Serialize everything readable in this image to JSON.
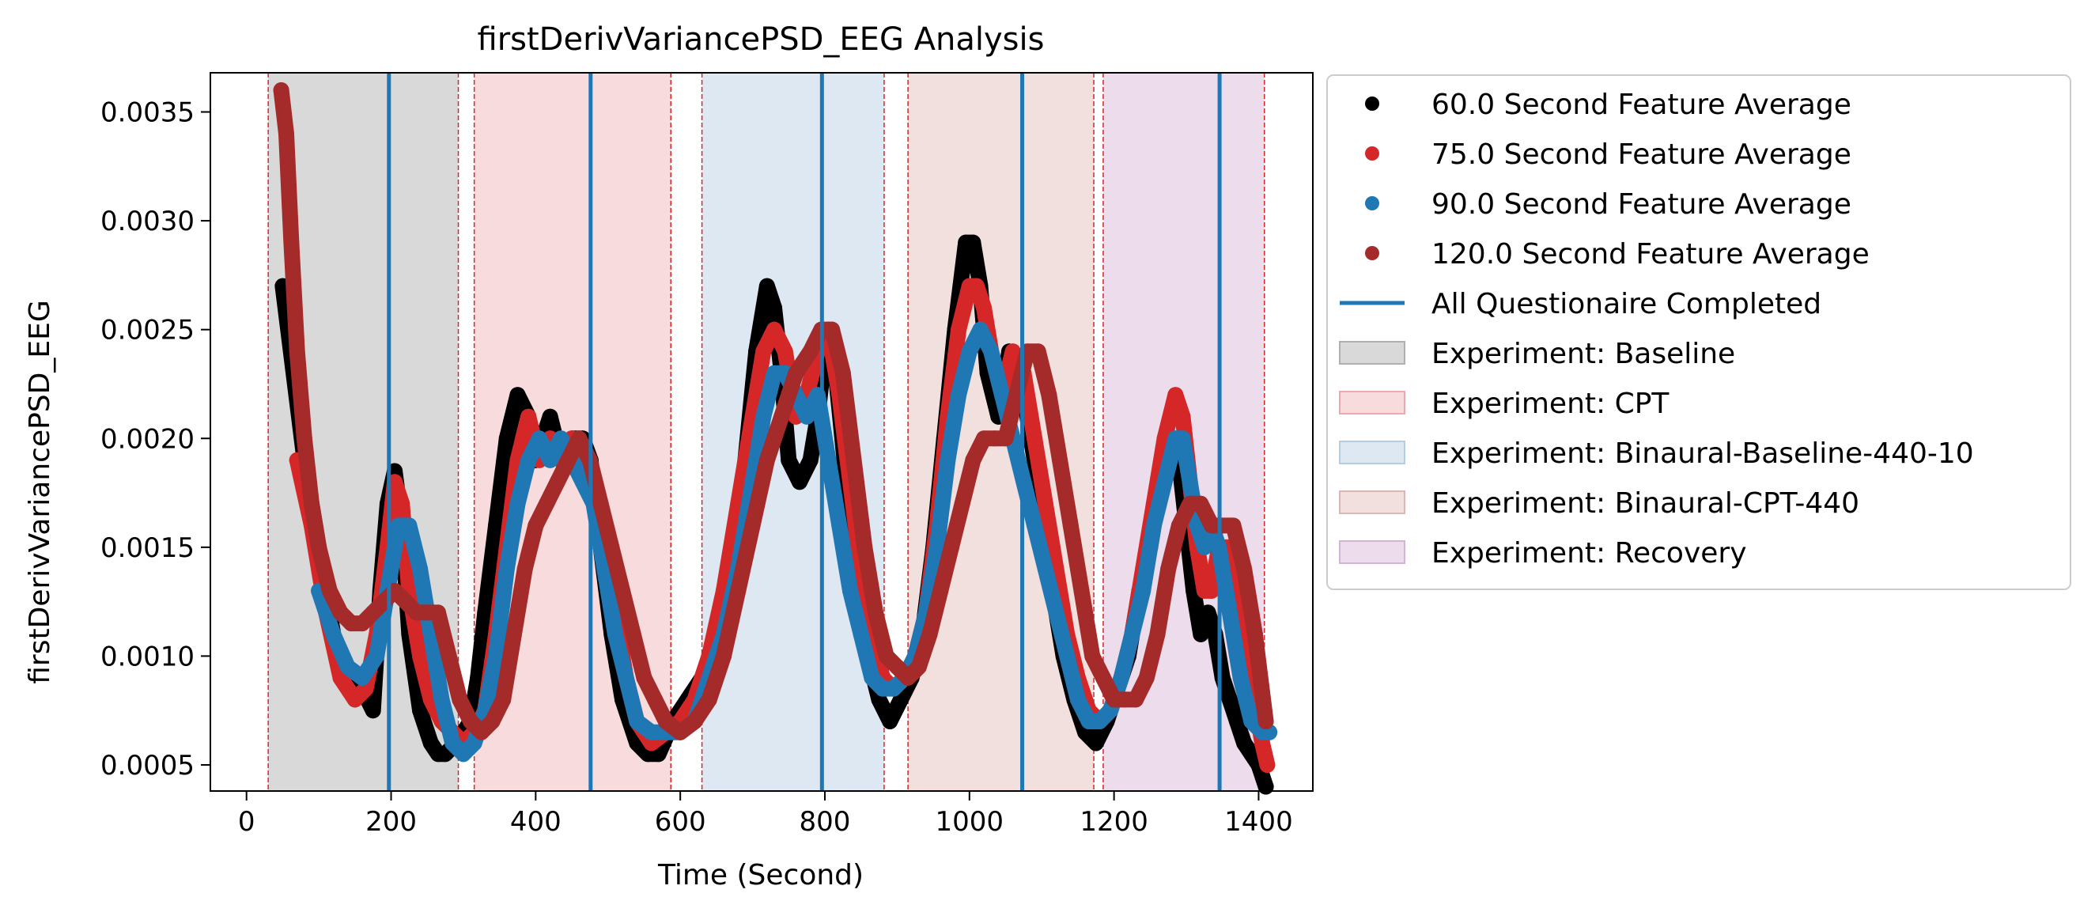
{
  "chart_data": {
    "type": "scatter",
    "title": "firstDerivVariancePSD_EEG Analysis",
    "xlabel": "Time (Second)",
    "ylabel": "firstDerivVariancePSD_EEG",
    "xlim": [
      -50,
      1475
    ],
    "ylim": [
      0.00038,
      0.00368
    ],
    "xticks": [
      0,
      200,
      400,
      600,
      800,
      1000,
      1200,
      1400
    ],
    "yticks": [
      0.0005,
      0.001,
      0.0015,
      0.002,
      0.0025,
      0.003,
      0.0035
    ],
    "xtick_labels": [
      "0",
      "200",
      "400",
      "600",
      "800",
      "1000",
      "1200",
      "1400"
    ],
    "ytick_labels": [
      "0.0005",
      "0.0010",
      "0.0015",
      "0.0020",
      "0.0025",
      "0.0030",
      "0.0035"
    ],
    "grid": false,
    "legend_position": "outside-right",
    "phases": [
      {
        "name": "Experiment: Baseline",
        "start": 30,
        "end": 293,
        "color": "#7f7f7f"
      },
      {
        "name": "Experiment: CPT",
        "start": 315,
        "end": 587,
        "color": "#e377c2"
      },
      {
        "name": "Experiment: Binaural-Baseline-440-10",
        "start": 630,
        "end": 882,
        "color": "#a6c8e6"
      },
      {
        "name": "Experiment: Binaural-CPT-440",
        "start": 915,
        "end": 1172,
        "color": "#c89a9a"
      },
      {
        "name": "Experiment: Recovery",
        "start": 1185,
        "end": 1408,
        "color": "#b98fcb"
      }
    ],
    "phase_fill_colors": [
      "#d9d9d9",
      "#f8dcdd",
      "#dde8f3",
      "#f2e0de",
      "#ecdcec"
    ],
    "phase_border_color": "#d62728",
    "questionnaire_label": "All Questionaire Completed",
    "questionnaire_color": "#1f77b4",
    "questionnaire_times": [
      197,
      476,
      796,
      1073,
      1346
    ],
    "series": [
      {
        "name": "60.0 Second Feature Average",
        "color": "#000000",
        "x": [
          50,
          80,
          100,
          120,
          140,
          160,
          175,
          185,
          195,
          205,
          215,
          225,
          240,
          255,
          265,
          275,
          290,
          300,
          310,
          320,
          330,
          345,
          360,
          375,
          390,
          400,
          410,
          420,
          435,
          450,
          465,
          476,
          490,
          505,
          520,
          540,
          555,
          570,
          590,
          610,
          630,
          650,
          670,
          690,
          705,
          720,
          730,
          740,
          750,
          765,
          780,
          790,
          800,
          815,
          830,
          845,
          860,
          875,
          890,
          905,
          920,
          935,
          950,
          965,
          980,
          995,
          1005,
          1015,
          1025,
          1040,
          1055,
          1070,
          1085,
          1100,
          1115,
          1130,
          1145,
          1160,
          1175,
          1190,
          1205,
          1220,
          1235,
          1250,
          1265,
          1280,
          1290,
          1300,
          1310,
          1320,
          1330,
          1340,
          1350,
          1360,
          1370,
          1380,
          1390,
          1400,
          1410
        ],
        "y": [
          0.0027,
          0.0019,
          0.0015,
          0.0011,
          0.0009,
          0.00085,
          0.00075,
          0.0013,
          0.0017,
          0.00185,
          0.0016,
          0.0011,
          0.00075,
          0.0006,
          0.00055,
          0.00055,
          0.0006,
          0.00065,
          0.0007,
          0.0009,
          0.0012,
          0.0016,
          0.002,
          0.0022,
          0.0021,
          0.0019,
          0.002,
          0.0021,
          0.0019,
          0.002,
          0.002,
          0.0019,
          0.0015,
          0.0011,
          0.0008,
          0.0006,
          0.00055,
          0.00055,
          0.0007,
          0.0008,
          0.0009,
          0.0011,
          0.0014,
          0.0019,
          0.0024,
          0.0027,
          0.0026,
          0.0023,
          0.0019,
          0.0018,
          0.0019,
          0.0021,
          0.0024,
          0.0023,
          0.0018,
          0.0013,
          0.001,
          0.0008,
          0.0007,
          0.0008,
          0.0009,
          0.0011,
          0.0015,
          0.002,
          0.0025,
          0.0029,
          0.0029,
          0.0027,
          0.0023,
          0.0021,
          0.0024,
          0.0023,
          0.002,
          0.0017,
          0.0013,
          0.001,
          0.0008,
          0.00065,
          0.0006,
          0.0007,
          0.00085,
          0.001,
          0.0013,
          0.0015,
          0.0018,
          0.002,
          0.0019,
          0.0016,
          0.0013,
          0.0011,
          0.0012,
          0.0011,
          0.0009,
          0.0008,
          0.0007,
          0.0006,
          0.00055,
          0.0005,
          0.0004
        ]
      },
      {
        "name": "75.0 Second Feature Average",
        "color": "#d62728",
        "x": [
          70,
          90,
          110,
          130,
          150,
          165,
          180,
          195,
          205,
          215,
          225,
          240,
          255,
          270,
          285,
          300,
          315,
          330,
          345,
          360,
          375,
          390,
          405,
          420,
          435,
          450,
          465,
          480,
          495,
          510,
          525,
          540,
          560,
          580,
          600,
          620,
          640,
          660,
          680,
          700,
          715,
          730,
          745,
          760,
          775,
          790,
          805,
          820,
          835,
          850,
          865,
          880,
          895,
          910,
          925,
          940,
          955,
          970,
          985,
          1000,
          1010,
          1020,
          1030,
          1045,
          1060,
          1075,
          1090,
          1105,
          1120,
          1135,
          1150,
          1165,
          1180,
          1195,
          1210,
          1225,
          1240,
          1255,
          1270,
          1285,
          1295,
          1305,
          1315,
          1325,
          1335,
          1345,
          1360,
          1375,
          1390,
          1405,
          1412
        ],
        "y": [
          0.0019,
          0.0016,
          0.0012,
          0.0009,
          0.0008,
          0.00085,
          0.0011,
          0.0015,
          0.0018,
          0.0017,
          0.0013,
          0.001,
          0.0008,
          0.0007,
          0.00065,
          0.0006,
          0.00065,
          0.00075,
          0.0011,
          0.0015,
          0.0019,
          0.0021,
          0.0019,
          0.002,
          0.0019,
          0.002,
          0.0019,
          0.0018,
          0.0015,
          0.0012,
          0.0009,
          0.0007,
          0.0006,
          0.00065,
          0.0007,
          0.0008,
          0.001,
          0.0013,
          0.0017,
          0.0021,
          0.0024,
          0.0025,
          0.0024,
          0.0021,
          0.0022,
          0.0024,
          0.0025,
          0.0022,
          0.0018,
          0.0014,
          0.0011,
          0.0009,
          0.00085,
          0.0009,
          0.001,
          0.0012,
          0.0016,
          0.0021,
          0.0025,
          0.0027,
          0.0027,
          0.0026,
          0.0024,
          0.0022,
          0.0024,
          0.0023,
          0.002,
          0.0017,
          0.0014,
          0.0011,
          0.0009,
          0.00075,
          0.0007,
          0.00075,
          0.0009,
          0.0011,
          0.0014,
          0.0017,
          0.002,
          0.0022,
          0.0021,
          0.0018,
          0.0015,
          0.0013,
          0.0013,
          0.0015,
          0.0015,
          0.0012,
          0.0009,
          0.0006,
          0.0005
        ]
      },
      {
        "name": "90.0 Second Feature Average",
        "color": "#1f77b4",
        "x": [
          100,
          120,
          140,
          160,
          180,
          195,
          210,
          225,
          240,
          255,
          270,
          285,
          300,
          315,
          330,
          345,
          360,
          375,
          390,
          405,
          420,
          435,
          450,
          465,
          480,
          495,
          510,
          525,
          540,
          560,
          580,
          600,
          620,
          640,
          660,
          680,
          700,
          715,
          730,
          745,
          760,
          775,
          790,
          805,
          820,
          835,
          850,
          865,
          880,
          895,
          910,
          925,
          940,
          955,
          970,
          985,
          1000,
          1015,
          1030,
          1045,
          1060,
          1075,
          1090,
          1105,
          1120,
          1135,
          1150,
          1165,
          1180,
          1195,
          1210,
          1225,
          1240,
          1255,
          1270,
          1285,
          1295,
          1305,
          1315,
          1325,
          1335,
          1345,
          1360,
          1375,
          1390,
          1405,
          1415
        ],
        "y": [
          0.0013,
          0.0011,
          0.00095,
          0.0009,
          0.001,
          0.0013,
          0.0016,
          0.0016,
          0.0014,
          0.0011,
          0.0008,
          0.0006,
          0.00055,
          0.0006,
          0.00075,
          0.001,
          0.0014,
          0.0017,
          0.0019,
          0.002,
          0.0019,
          0.002,
          0.0019,
          0.0018,
          0.0017,
          0.0014,
          0.0011,
          0.0009,
          0.0007,
          0.00065,
          0.00065,
          0.00065,
          0.0007,
          0.0009,
          0.0011,
          0.0014,
          0.0018,
          0.0021,
          0.0023,
          0.0023,
          0.0022,
          0.0021,
          0.0022,
          0.0019,
          0.0016,
          0.0013,
          0.0011,
          0.0009,
          0.00085,
          0.00085,
          0.0009,
          0.001,
          0.0012,
          0.0015,
          0.0019,
          0.0022,
          0.0024,
          0.0025,
          0.0024,
          0.0022,
          0.002,
          0.0018,
          0.0016,
          0.0014,
          0.0012,
          0.001,
          0.0008,
          0.0007,
          0.0007,
          0.00075,
          0.0009,
          0.0011,
          0.0013,
          0.0016,
          0.0018,
          0.002,
          0.002,
          0.0018,
          0.0016,
          0.0015,
          0.0016,
          0.0015,
          0.0012,
          0.0009,
          0.0007,
          0.00065,
          0.00065
        ]
      },
      {
        "name": "120.0 Second Feature Average",
        "color": "#a52a2a",
        "x": [
          48,
          55,
          62,
          70,
          80,
          90,
          100,
          115,
          130,
          145,
          160,
          175,
          190,
          205,
          220,
          235,
          250,
          265,
          280,
          295,
          310,
          325,
          340,
          355,
          370,
          385,
          400,
          415,
          430,
          445,
          460,
          475,
          490,
          505,
          520,
          535,
          550,
          565,
          580,
          600,
          620,
          640,
          660,
          680,
          700,
          720,
          740,
          760,
          780,
          795,
          810,
          825,
          840,
          855,
          870,
          885,
          900,
          915,
          930,
          945,
          960,
          975,
          990,
          1005,
          1020,
          1035,
          1050,
          1065,
          1080,
          1095,
          1110,
          1125,
          1140,
          1155,
          1170,
          1185,
          1200,
          1215,
          1230,
          1245,
          1260,
          1275,
          1290,
          1305,
          1320,
          1335,
          1350,
          1365,
          1380,
          1395,
          1410
        ],
        "y": [
          0.0036,
          0.0034,
          0.0029,
          0.0024,
          0.002,
          0.0017,
          0.0015,
          0.0013,
          0.0012,
          0.00115,
          0.00115,
          0.0012,
          0.00125,
          0.0013,
          0.00125,
          0.0012,
          0.0012,
          0.0012,
          0.001,
          0.0008,
          0.0007,
          0.00065,
          0.0007,
          0.0008,
          0.0011,
          0.0014,
          0.0016,
          0.0017,
          0.0018,
          0.0019,
          0.002,
          0.0019,
          0.0017,
          0.0015,
          0.0013,
          0.0011,
          0.0009,
          0.0008,
          0.0007,
          0.00065,
          0.0007,
          0.0008,
          0.001,
          0.0013,
          0.0016,
          0.0019,
          0.0021,
          0.0023,
          0.0024,
          0.0025,
          0.0025,
          0.0023,
          0.0019,
          0.0015,
          0.0012,
          0.001,
          0.00095,
          0.0009,
          0.00095,
          0.0011,
          0.0013,
          0.0015,
          0.0017,
          0.0019,
          0.002,
          0.002,
          0.002,
          0.0022,
          0.0024,
          0.0024,
          0.0022,
          0.0019,
          0.0016,
          0.0013,
          0.001,
          0.0009,
          0.0008,
          0.0008,
          0.0008,
          0.0009,
          0.0011,
          0.0014,
          0.0016,
          0.0017,
          0.0017,
          0.0016,
          0.0016,
          0.0016,
          0.0014,
          0.0011,
          0.0007
        ]
      }
    ],
    "legend": [
      {
        "label": "60.0 Second Feature Average",
        "kind": "marker",
        "color": "#000000"
      },
      {
        "label": "75.0 Second Feature Average",
        "kind": "marker",
        "color": "#d62728"
      },
      {
        "label": "90.0 Second Feature Average",
        "kind": "marker",
        "color": "#1f77b4"
      },
      {
        "label": "120.0 Second Feature Average",
        "kind": "marker",
        "color": "#a52a2a"
      },
      {
        "label": "All Questionaire Completed",
        "kind": "line",
        "color": "#1f77b4"
      },
      {
        "label": "Experiment: Baseline",
        "kind": "patch",
        "color": "#d9d9d9",
        "edge": "#b0b0b0"
      },
      {
        "label": "Experiment: CPT",
        "kind": "patch",
        "color": "#f8dcdd",
        "edge": "#eaa9ad"
      },
      {
        "label": "Experiment: Binaural-Baseline-440-10",
        "kind": "patch",
        "color": "#dde8f3",
        "edge": "#b3cde5"
      },
      {
        "label": "Experiment: Binaural-CPT-440",
        "kind": "patch",
        "color": "#f2e0de",
        "edge": "#ddb6b2"
      },
      {
        "label": "Experiment: Recovery",
        "kind": "patch",
        "color": "#ecdcec",
        "edge": "#d3b4d8"
      }
    ]
  }
}
